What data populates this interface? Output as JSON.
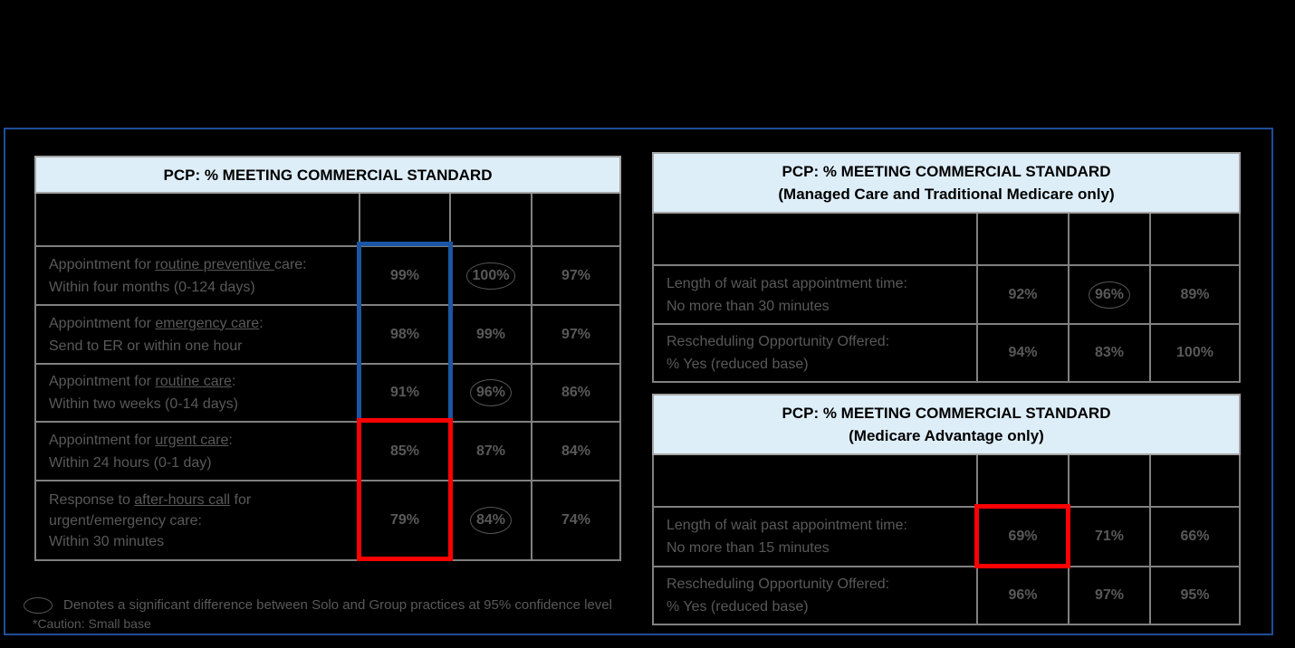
{
  "table_left": {
    "title": "PCP: % MEETING COMMERCIAL STANDARD",
    "rows": [
      {
        "prefix": "Appointment for ",
        "link": "routine preventive ",
        "suffix": "care:",
        "line2": "Within four months (0-124 days)",
        "values": [
          "99%",
          "100%",
          "97%"
        ]
      },
      {
        "prefix": "Appointment for ",
        "link": "emergency care",
        "suffix": ":",
        "line2": "Send to ER or within one hour",
        "values": [
          "98%",
          "99%",
          "97%"
        ]
      },
      {
        "prefix": "Appointment for ",
        "link": "routine care",
        "suffix": ":",
        "line2": "Within two weeks (0-14 days)",
        "values": [
          "91%",
          "96%",
          "86%"
        ]
      },
      {
        "prefix": "Appointment for ",
        "link": "urgent care",
        "suffix": ":",
        "line2": "Within 24 hours (0-1 day)",
        "values": [
          "85%",
          "87%",
          "84%"
        ]
      },
      {
        "prefix": "Response to ",
        "link": "after-hours call",
        "suffix": " for",
        "line1b": "urgent/emergency care:",
        "line2": "Within 30 minutes",
        "values": [
          "79%",
          "84%",
          "74%"
        ]
      }
    ]
  },
  "table_right_top": {
    "title_line1": "PCP: % MEETING COMMERCIAL STANDARD",
    "title_line2": "(Managed Care and Traditional  Medicare only)",
    "rows": [
      {
        "line1": "Length of wait past appointment time:",
        "line2": "No more than 30 minutes",
        "values": [
          "92%",
          "96%",
          "89%"
        ]
      },
      {
        "line1": "Rescheduling Opportunity Offered:",
        "line2": "% Yes (reduced base)",
        "values": [
          "94%",
          "83%",
          "100%"
        ]
      }
    ]
  },
  "table_right_bottom": {
    "title_line1": "PCP: % MEETING COMMERCIAL STANDARD",
    "title_line2": "(Medicare Advantage only)",
    "rows": [
      {
        "line1": "Length of wait past appointment time:",
        "line2": "No more than 15 minutes",
        "values": [
          "69%",
          "71%",
          "66%"
        ]
      },
      {
        "line1": "Rescheduling Opportunity Offered:",
        "line2": "% Yes (reduced base)",
        "values": [
          "96%",
          "97%",
          "95%"
        ]
      }
    ]
  },
  "legend": {
    "significance": "Denotes a significant difference between Solo and Group practices at 95% confidence level",
    "caution": "*Caution: Small base"
  },
  "colors": {
    "blue_highlight": "#1c55a4",
    "red_highlight": "#ff0000",
    "title_bg": "#deeef9"
  }
}
